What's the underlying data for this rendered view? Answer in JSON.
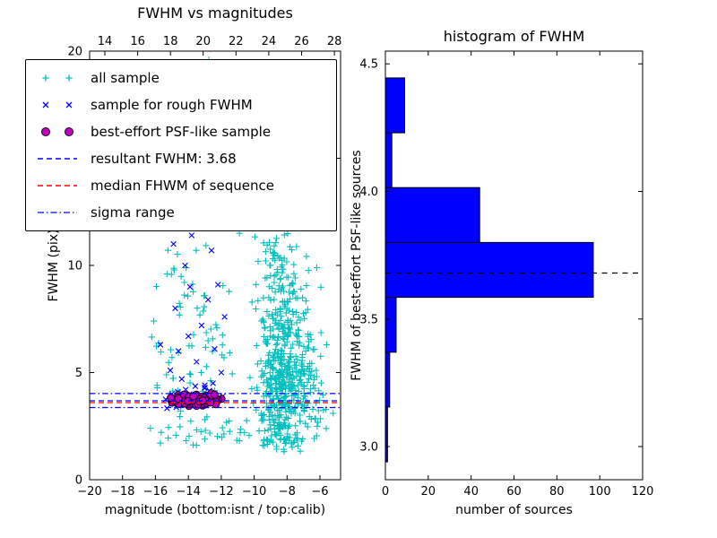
{
  "colors": {
    "cyan": "#00bfbf",
    "blue": "#0000ff",
    "magenta": "#bf00bf",
    "magenta_edge": "#1a001a",
    "red": "#ff0000",
    "black": "#000000",
    "bar_fill": "#0000ff"
  },
  "chart_data": [
    {
      "type": "scatter",
      "title": "FWHM vs magnitudes",
      "xlabel": "magnitude (bottom:isnt / top:calib)",
      "ylabel": "FWHM (pix)",
      "xlim": [
        -20,
        -4.75
      ],
      "ylim": [
        0,
        20
      ],
      "grid": false,
      "legend_position": "upper left",
      "x_ticks": {
        "values": [
          -20,
          -18,
          -16,
          -14,
          -12,
          -10,
          -8,
          -6
        ],
        "labels": [
          "−20",
          "−18",
          "−16",
          "−14",
          "−12",
          "−10",
          "−8",
          "−6"
        ]
      },
      "top_axis": {
        "lim": [
          13.07,
          28.38
        ],
        "values": [
          14,
          16,
          18,
          20,
          22,
          24,
          26,
          28
        ],
        "labels": [
          "14",
          "16",
          "18",
          "20",
          "22",
          "24",
          "26",
          "28"
        ]
      },
      "y_ticks": {
        "values": [
          0,
          5,
          10,
          15,
          20
        ],
        "labels": [
          "0",
          "5",
          "10",
          "15",
          "20"
        ]
      },
      "legend": [
        {
          "label": "all sample",
          "color": "#00bfbf",
          "marker": "plus"
        },
        {
          "label": "sample for rough FWHM",
          "color": "#0000ff",
          "marker": "x"
        },
        {
          "label": "best-effort PSF-like sample",
          "color": "#bf00bf",
          "marker": "circle"
        },
        {
          "label": "resultant FWHM: 3.68",
          "color": "#0000ff",
          "marker": "dashed-line"
        },
        {
          "label": "median FHWM of sequence",
          "color": "#ff0000",
          "marker": "dashed-line"
        },
        {
          "label": "sigma range",
          "color": "#0000ff",
          "marker": "dashdot-line"
        }
      ],
      "hlines": [
        {
          "name": "resultant-fwhm-line",
          "y": 3.68,
          "style": "dashed",
          "color": "#0000ff"
        },
        {
          "name": "median-fwhm-line",
          "y": 3.6,
          "style": "dashed",
          "color": "#ff0000"
        },
        {
          "name": "sigma-low-line",
          "y": 3.37,
          "style": "dashdot",
          "color": "#0000ff"
        },
        {
          "name": "sigma-high-line",
          "y": 4.02,
          "style": "dashdot",
          "color": "#0000ff"
        }
      ],
      "series": [
        {
          "name": "all sample",
          "marker": "plus",
          "color": "#00bfbf",
          "clusters": [
            {
              "n": 330,
              "cx": -8.4,
              "cy": 4.2,
              "sx": 0.7,
              "sy": 1.5,
              "clip": [
                -10.8,
                -5.9,
                1.3,
                19.8
              ]
            },
            {
              "n": 150,
              "cx": -8.2,
              "cy": 7.8,
              "sx": 0.8,
              "sy": 1.7,
              "clip": [
                -10.8,
                -5.9,
                1.3,
                19.8
              ]
            },
            {
              "n": 35,
              "cx": -8.6,
              "cy": 10.8,
              "sx": 0.9,
              "sy": 0.9
            },
            {
              "n": 70,
              "cx": -6.6,
              "cy": 4.2,
              "sx": 0.6,
              "sy": 1.6,
              "clip": [
                -10.8,
                -4.9,
                1.3,
                19.8
              ]
            },
            {
              "n": 80,
              "cx": -13.4,
              "cy": 6.2,
              "sx": 1.5,
              "sy": 2.6,
              "clip": [
                -16.4,
                -10.9,
                1.8,
                12.8
              ]
            },
            {
              "n": 45,
              "cx": -11.0,
              "cy": 2.1,
              "sx": 2.8,
              "sy": 0.35,
              "clip": [
                -16.5,
                -5.5,
                1.5,
                2.9
              ]
            }
          ],
          "points": [
            [
              -12.75,
              19.6
            ],
            [
              -12.3,
              19.45
            ],
            [
              -9.7,
              13.4
            ],
            [
              -7.9,
              13.0
            ],
            [
              -10.4,
              12.6
            ],
            [
              -11.3,
              12.2
            ],
            [
              -10.1,
              12.9
            ],
            [
              -10.9,
              11.5
            ],
            [
              -6.2,
              9.9
            ],
            [
              -5.6,
              6.3
            ],
            [
              -5.2,
              3.1
            ],
            [
              -15.8,
              11.9
            ],
            [
              -15.3,
              9.6
            ],
            [
              -16.1,
              7.4
            ],
            [
              -15.9,
              4.4
            ],
            [
              -16.3,
              2.4
            ]
          ]
        },
        {
          "name": "sample for rough FWHM",
          "marker": "x",
          "color": "#0000ff",
          "clusters": [
            {
              "n": 18,
              "cx": -13.7,
              "cy": 3.85,
              "sx": 0.95,
              "sy": 0.3,
              "clip": [
                -15.6,
                -11.7,
                3.3,
                4.6
              ]
            }
          ],
          "points": [
            [
              -15.7,
              6.3
            ],
            [
              -15.1,
              5.1
            ],
            [
              -14.8,
              8.0
            ],
            [
              -14.4,
              4.7
            ],
            [
              -14.2,
              10.0
            ],
            [
              -14.0,
              6.7
            ],
            [
              -13.8,
              11.4
            ],
            [
              -13.5,
              5.5
            ],
            [
              -13.2,
              7.2
            ],
            [
              -13.0,
              4.3
            ],
            [
              -12.8,
              8.4
            ],
            [
              -12.6,
              10.7
            ],
            [
              -12.4,
              6.1
            ],
            [
              -12.2,
              9.1
            ],
            [
              -12.0,
              5.0
            ],
            [
              -11.8,
              7.6
            ],
            [
              -11.9,
              3.9
            ],
            [
              -13.9,
              9.0
            ],
            [
              -15.0,
              4.0
            ],
            [
              -14.6,
              6.0
            ],
            [
              -13.3,
              12.2
            ],
            [
              -12.5,
              4.5
            ],
            [
              -14.9,
              11.0
            ],
            [
              -12.1,
              11.8
            ]
          ]
        },
        {
          "name": "best-effort PSF-like sample",
          "marker": "circle",
          "color": "#bf00bf",
          "edge": "#1a001a",
          "clusters": [
            {
              "n": 95,
              "cx": -13.6,
              "cy": 3.72,
              "sx": 0.85,
              "sy": 0.14,
              "clip": [
                -15.45,
                -11.85,
                3.43,
                4.05
              ]
            }
          ],
          "points": []
        }
      ]
    },
    {
      "type": "bar-horizontal",
      "title": "histogram of FWHM",
      "xlabel": "number of sources",
      "ylabel": "FWHM of best-effort PSF-like sources",
      "xlim": [
        0,
        120
      ],
      "ylim": [
        2.87,
        4.55
      ],
      "grid": false,
      "x_ticks": {
        "values": [
          0,
          20,
          40,
          60,
          80,
          100,
          120
        ],
        "labels": [
          "0",
          "20",
          "40",
          "60",
          "80",
          "100",
          "120"
        ]
      },
      "y_ticks": {
        "values": [
          3.0,
          3.5,
          4.0,
          4.5
        ],
        "labels": [
          "3.0",
          "3.5",
          "4.0",
          "4.5"
        ]
      },
      "bin_edges": [
        2.94,
        3.155,
        3.37,
        3.585,
        3.8,
        4.015,
        4.23,
        4.445
      ],
      "counts": [
        1,
        2,
        5,
        97,
        44,
        3,
        9
      ],
      "bar_fill": "#0000ff",
      "bar_edge": "#000000",
      "dashed_line_y": 3.68,
      "dashed_line_color": "#000000"
    }
  ]
}
